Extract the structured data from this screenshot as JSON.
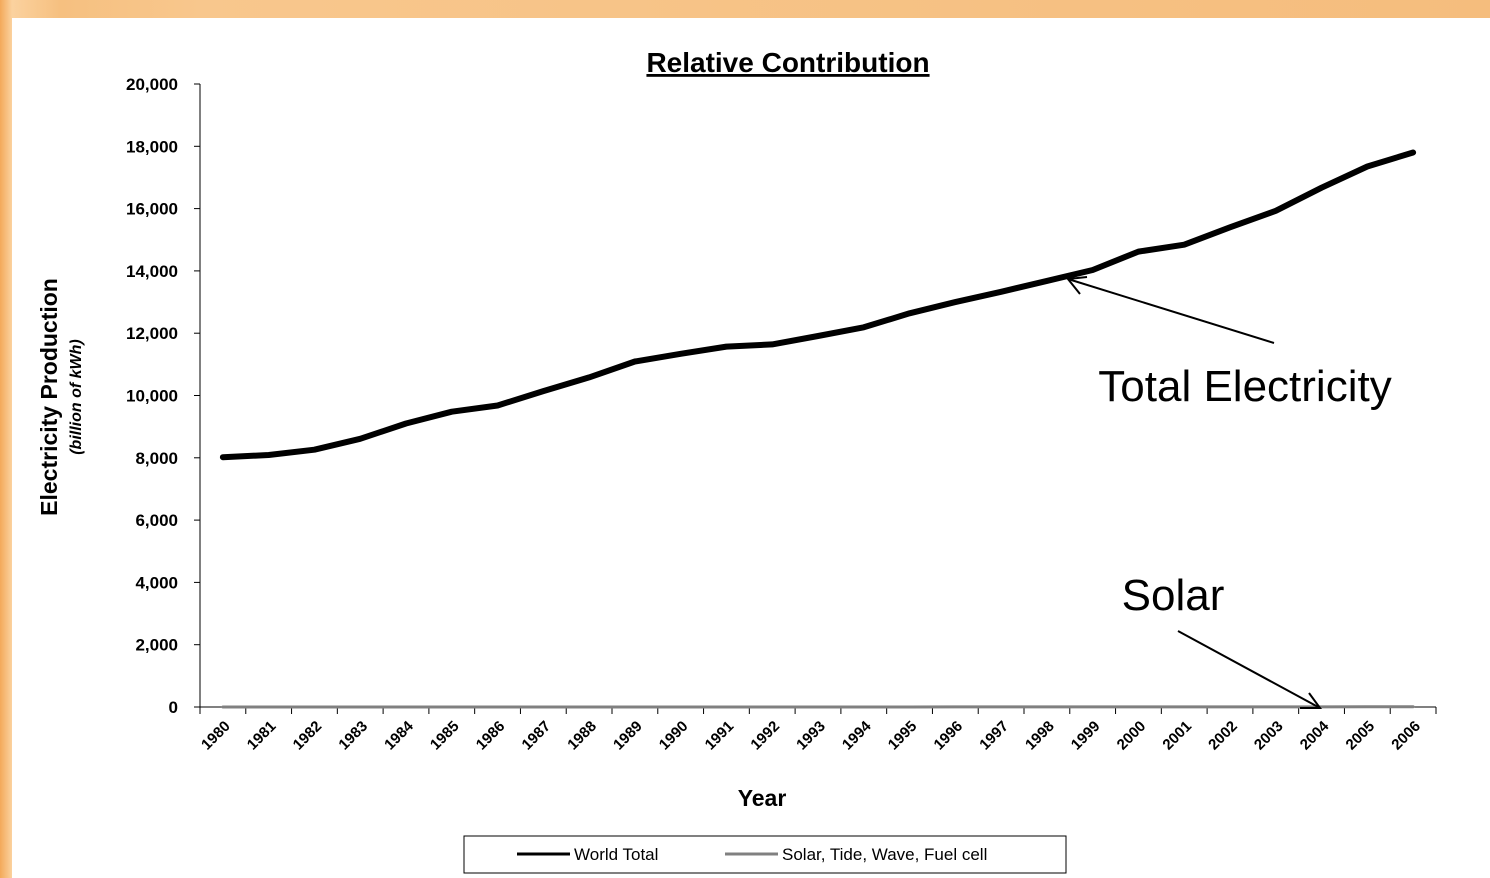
{
  "chart_data": {
    "type": "line",
    "title": "Relative Contribution",
    "xlabel": "Year",
    "ylabel": "Electricity Production",
    "ylabel_sub": "(billion of kWh)",
    "ylim": [
      0,
      20000
    ],
    "y_ticks": [
      "0",
      "2,000",
      "4,000",
      "6,000",
      "8,000",
      "10,000",
      "12,000",
      "14,000",
      "16,000",
      "18,000",
      "20,000"
    ],
    "categories": [
      "1980",
      "1981",
      "1982",
      "1983",
      "1984",
      "1985",
      "1986",
      "1987",
      "1988",
      "1989",
      "1990",
      "1991",
      "1992",
      "1993",
      "1994",
      "1995",
      "1996",
      "1997",
      "1998",
      "1999",
      "2000",
      "2001",
      "2002",
      "2003",
      "2004",
      "2005",
      "2006"
    ],
    "series": [
      {
        "name": "World Total",
        "color": "#000000",
        "values": [
          8020,
          8090,
          8260,
          8610,
          9100,
          9480,
          9680,
          10140,
          10580,
          11090,
          11340,
          11570,
          11640,
          11910,
          12190,
          12640,
          13000,
          13330,
          13680,
          14030,
          14620,
          14840,
          15400,
          15930,
          16670,
          17350,
          17800
        ]
      },
      {
        "name": "Solar, Tide, Wave, Fuel cell",
        "color": "#808080",
        "values": [
          1,
          1,
          1,
          1,
          1,
          1,
          1,
          1,
          1,
          1,
          1,
          1,
          1,
          1,
          1,
          1,
          2,
          2,
          2,
          2,
          2,
          2,
          3,
          3,
          4,
          5,
          6
        ]
      }
    ],
    "grid": false,
    "legend_position": "bottom",
    "annotations": [
      {
        "text": "Total Electricity",
        "points_to": {
          "x": "1999",
          "y": 14000
        }
      },
      {
        "text": "Solar",
        "points_to": {
          "x": "2004",
          "y": 0
        }
      }
    ]
  }
}
